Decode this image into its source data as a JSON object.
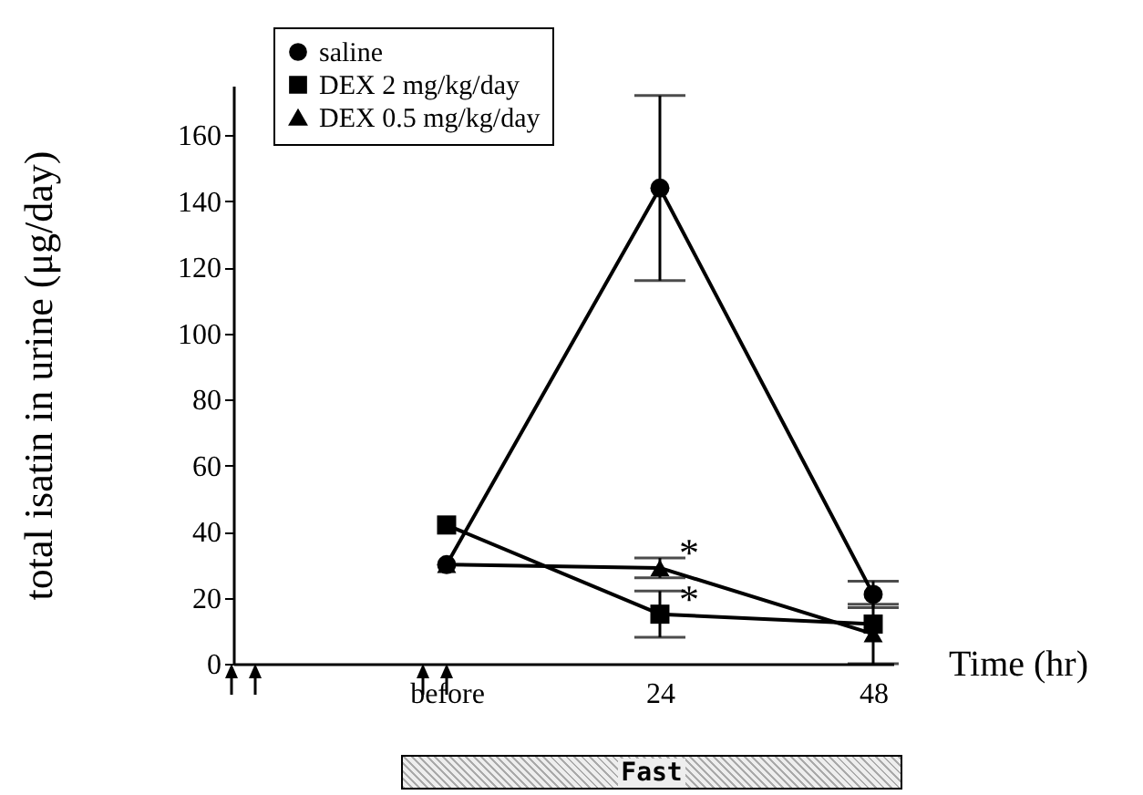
{
  "chart_data": {
    "type": "line",
    "xlabel": "Time (hr)",
    "ylabel": "total isatin in urine (μg/day)",
    "categories": [
      "before",
      "24",
      "48"
    ],
    "series": [
      {
        "name": "saline",
        "color": "#000000",
        "marker": "circle",
        "values": [
          30,
          144,
          21
        ],
        "errors": [
          null,
          28,
          4
        ]
      },
      {
        "name": "DEX 2 mg/kg/day",
        "color": "#000000",
        "marker": "square",
        "values": [
          42,
          15,
          12
        ],
        "errors": [
          null,
          7,
          null
        ]
      },
      {
        "name": "DEX 0.5 mg/kg/day",
        "color": "#000000",
        "marker": "triangle",
        "values": [
          30,
          29,
          9
        ],
        "errors": [
          null,
          3,
          9
        ]
      }
    ],
    "ylim": [
      0,
      175
    ],
    "yticks": [
      0,
      20,
      40,
      60,
      80,
      100,
      120,
      140,
      160
    ],
    "legend": "top left",
    "grid": false,
    "annotations": [
      {
        "text": "*",
        "x": "24",
        "y": 29
      },
      {
        "text": "*",
        "x": "24",
        "y": 15
      },
      "Fast"
    ]
  }
}
